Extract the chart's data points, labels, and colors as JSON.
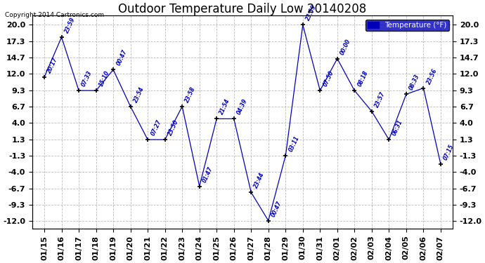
{
  "title": "Outdoor Temperature Daily Low 20140208",
  "copyright": "Copyright 2014 Cartronics.com",
  "legend_label": "Temperature (°F)",
  "x_labels": [
    "01/15",
    "01/16",
    "01/17",
    "01/18",
    "01/19",
    "01/20",
    "01/21",
    "01/22",
    "01/23",
    "01/24",
    "01/25",
    "01/26",
    "01/27",
    "01/28",
    "01/29",
    "01/30",
    "01/31",
    "02/01",
    "02/02",
    "02/03",
    "02/04",
    "02/05",
    "02/06",
    "02/07"
  ],
  "y_values": [
    11.5,
    18.0,
    9.3,
    9.3,
    12.7,
    6.7,
    1.3,
    1.3,
    6.7,
    -6.3,
    4.7,
    4.7,
    -7.3,
    -11.9,
    -1.3,
    20.0,
    9.3,
    14.5,
    9.3,
    5.9,
    1.3,
    8.7,
    9.7,
    -2.7
  ],
  "time_labels": [
    "20:17",
    "23:59",
    "07:33",
    "15:10",
    "00:47",
    "23:54",
    "07:27",
    "23:50",
    "23:58",
    "01:47",
    "21:54",
    "04:39",
    "23:44",
    "00:47",
    "03:11",
    "23:59",
    "07:50",
    "00:00",
    "08:18",
    "23:57",
    "06:31",
    "08:33",
    "23:56",
    "07:15"
  ],
  "y_ticks": [
    -12.0,
    -9.3,
    -6.7,
    -4.0,
    -1.3,
    1.3,
    4.0,
    6.7,
    9.3,
    12.0,
    14.7,
    17.3,
    20.0
  ],
  "line_color": "#0000bb",
  "bg_color": "#ffffff",
  "grid_color": "#bbbbbb",
  "grid_linestyle": "--",
  "title_fontsize": 12,
  "tick_fontsize": 8,
  "label_fontsize": 7,
  "legend_bg_color": "#0000bb",
  "legend_text_color": "#ffffff",
  "ylim_min": -13.2,
  "ylim_max": 21.5
}
